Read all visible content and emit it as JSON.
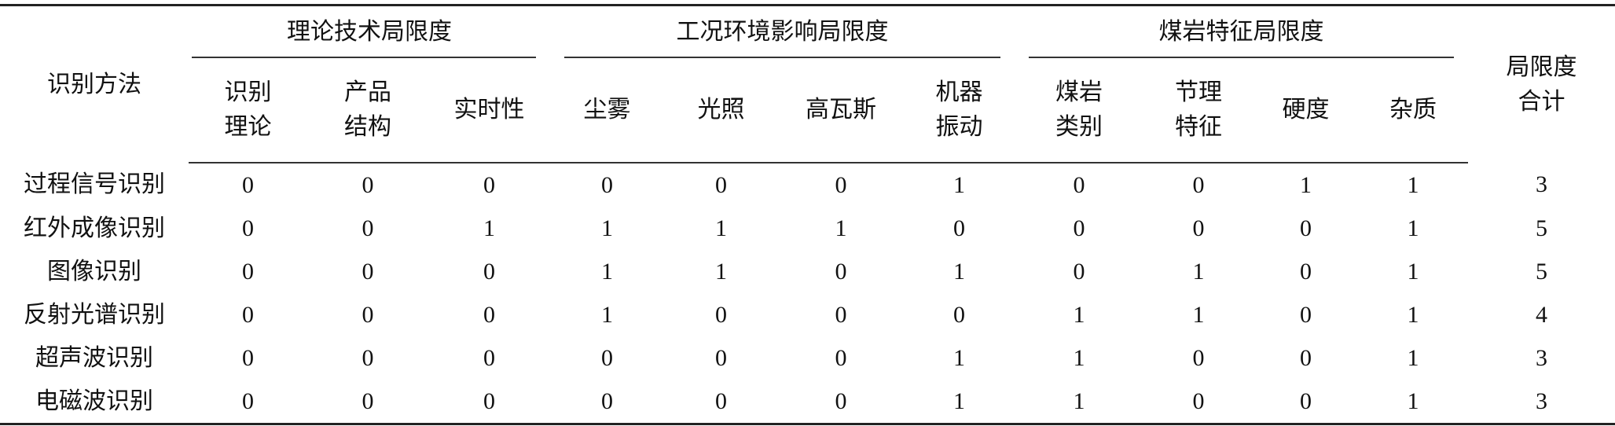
{
  "table": {
    "method_header": "识别方法",
    "total_header": "局限度\n合计",
    "groups": [
      {
        "label": "理论技术局限度",
        "columns": [
          "识别\n理论",
          "产品\n结构",
          "实时性"
        ]
      },
      {
        "label": "工况环境影响局限度",
        "columns": [
          "尘雾",
          "光照",
          "高瓦斯",
          "机器\n振动"
        ]
      },
      {
        "label": "煤岩特征局限度",
        "columns": [
          "煤岩\n类别",
          "节理\n特征",
          "硬度",
          "杂质"
        ]
      }
    ],
    "rows": [
      {
        "method": "过程信号识别",
        "values": [
          "0",
          "0",
          "0",
          "0",
          "0",
          "0",
          "1",
          "0",
          "0",
          "1",
          "1"
        ],
        "total": "3"
      },
      {
        "method": "红外成像识别",
        "values": [
          "0",
          "0",
          "1",
          "1",
          "1",
          "1",
          "0",
          "0",
          "0",
          "0",
          "1"
        ],
        "total": "5"
      },
      {
        "method": "图像识别",
        "values": [
          "0",
          "0",
          "0",
          "1",
          "1",
          "0",
          "1",
          "0",
          "1",
          "0",
          "1"
        ],
        "total": "5"
      },
      {
        "method": "反射光谱识别",
        "values": [
          "0",
          "0",
          "0",
          "1",
          "0",
          "0",
          "0",
          "1",
          "1",
          "0",
          "1"
        ],
        "total": "4"
      },
      {
        "method": "超声波识别",
        "values": [
          "0",
          "0",
          "0",
          "0",
          "0",
          "0",
          "1",
          "1",
          "0",
          "0",
          "1"
        ],
        "total": "3"
      },
      {
        "method": "电磁波识别",
        "values": [
          "0",
          "0",
          "0",
          "0",
          "0",
          "0",
          "1",
          "1",
          "0",
          "0",
          "1"
        ],
        "total": "3"
      }
    ]
  }
}
